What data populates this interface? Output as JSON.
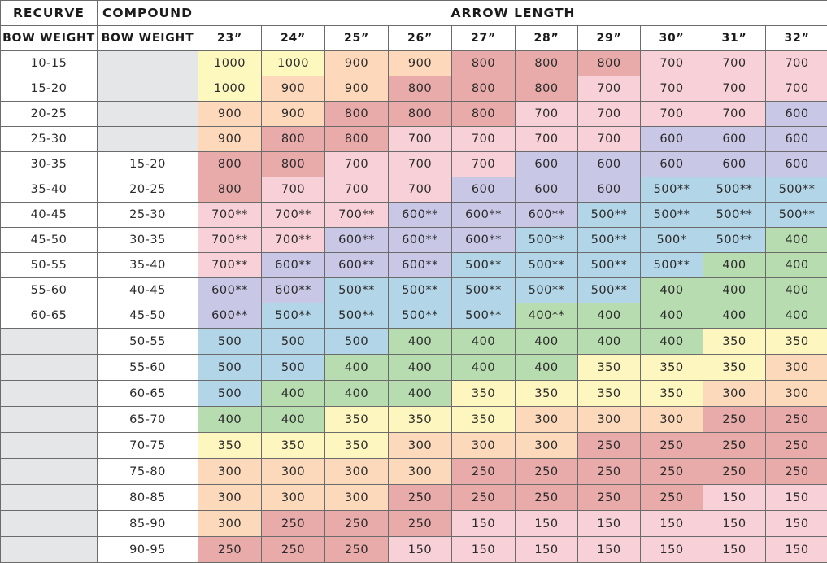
{
  "header": {
    "recurve": "RECURVE",
    "compound": "COMPOUND",
    "arrow_length": "ARROW LENGTH",
    "recurve_sub": "BOW WEIGHT",
    "compound_sub": "BOW WEIGHT",
    "lengths": [
      "23”",
      "24”",
      "25”",
      "26”",
      "27”",
      "28”",
      "29”",
      "30”",
      "31”",
      "32”"
    ]
  },
  "rows": [
    {
      "recurve": "10-15",
      "compound": "",
      "spines": [
        "1000",
        "1000",
        "900",
        "900",
        "800",
        "800",
        "800",
        "700",
        "700",
        "700"
      ]
    },
    {
      "recurve": "15-20",
      "compound": "",
      "spines": [
        "1000",
        "900",
        "900",
        "800",
        "800",
        "800",
        "700",
        "700",
        "700",
        "700"
      ]
    },
    {
      "recurve": "20-25",
      "compound": "",
      "spines": [
        "900",
        "900",
        "800",
        "800",
        "800",
        "700",
        "700",
        "700",
        "700",
        "600"
      ]
    },
    {
      "recurve": "25-30",
      "compound": "",
      "spines": [
        "900",
        "800",
        "800",
        "700",
        "700",
        "700",
        "700",
        "600",
        "600",
        "600"
      ]
    },
    {
      "recurve": "30-35",
      "compound": "15-20",
      "spines": [
        "800",
        "800",
        "700",
        "700",
        "700",
        "600",
        "600",
        "600",
        "600",
        "600"
      ]
    },
    {
      "recurve": "35-40",
      "compound": "20-25",
      "spines": [
        "800",
        "700",
        "700",
        "700",
        "600",
        "600",
        "600",
        "500**",
        "500**",
        "500**"
      ]
    },
    {
      "recurve": "40-45",
      "compound": "25-30",
      "spines": [
        "700**",
        "700**",
        "700**",
        "600**",
        "600**",
        "600**",
        "500**",
        "500**",
        "500**",
        "500**"
      ]
    },
    {
      "recurve": "45-50",
      "compound": "30-35",
      "spines": [
        "700**",
        "700**",
        "600**",
        "600**",
        "600**",
        "500**",
        "500**",
        "500*",
        "500**",
        "400"
      ]
    },
    {
      "recurve": "50-55",
      "compound": "35-40",
      "spines": [
        "700**",
        "600**",
        "600**",
        "600**",
        "500**",
        "500**",
        "500**",
        "500**",
        "400",
        "400"
      ]
    },
    {
      "recurve": "55-60",
      "compound": "40-45",
      "spines": [
        "600**",
        "600**",
        "500**",
        "500**",
        "500**",
        "500**",
        "500**",
        "400",
        "400",
        "400"
      ]
    },
    {
      "recurve": "60-65",
      "compound": "45-50",
      "spines": [
        "600**",
        "500**",
        "500**",
        "500**",
        "500**",
        "400**",
        "400",
        "400",
        "400",
        "400"
      ]
    },
    {
      "recurve": "",
      "compound": "50-55",
      "spines": [
        "500",
        "500",
        "500",
        "400",
        "400",
        "400",
        "400",
        "400",
        "350",
        "350"
      ]
    },
    {
      "recurve": "",
      "compound": "55-60",
      "spines": [
        "500",
        "500",
        "400",
        "400",
        "400",
        "400",
        "350",
        "350",
        "350",
        "300"
      ]
    },
    {
      "recurve": "",
      "compound": "60-65",
      "spines": [
        "500",
        "400",
        "400",
        "400",
        "350",
        "350",
        "350",
        "350",
        "300",
        "300"
      ]
    },
    {
      "recurve": "",
      "compound": "65-70",
      "spines": [
        "400",
        "400",
        "350",
        "350",
        "350",
        "300",
        "300",
        "300",
        "250",
        "250"
      ]
    },
    {
      "recurve": "",
      "compound": "70-75",
      "spines": [
        "350",
        "350",
        "350",
        "300",
        "300",
        "300",
        "250",
        "250",
        "250",
        "250"
      ]
    },
    {
      "recurve": "",
      "compound": "75-80",
      "spines": [
        "300",
        "300",
        "300",
        "300",
        "250",
        "250",
        "250",
        "250",
        "250",
        "250"
      ]
    },
    {
      "recurve": "",
      "compound": "80-85",
      "spines": [
        "300",
        "300",
        "300",
        "250",
        "250",
        "250",
        "250",
        "250",
        "150",
        "150"
      ]
    },
    {
      "recurve": "",
      "compound": "85-90",
      "spines": [
        "300",
        "250",
        "250",
        "250",
        "150",
        "150",
        "150",
        "150",
        "150",
        "150"
      ]
    },
    {
      "recurve": "",
      "compound": "90-95",
      "spines": [
        "250",
        "250",
        "250",
        "150",
        "150",
        "150",
        "150",
        "150",
        "150",
        "150"
      ]
    }
  ],
  "colors": {
    "1000": "#fdf8bd",
    "900": "#fdd8ba",
    "800": "#e9aaaa",
    "700": "#f8d0d8",
    "600": "#c8c7e6",
    "500": "#b2d5e8",
    "400": "#b7dcb0",
    "350": "#fdf6be",
    "300": "#fcd9ba",
    "250": "#e9aaaa",
    "150": "#f8d0d8",
    "empty_cell": "#e5e6e8",
    "border": "#6b6b6b",
    "text": "#2a2a2a"
  }
}
